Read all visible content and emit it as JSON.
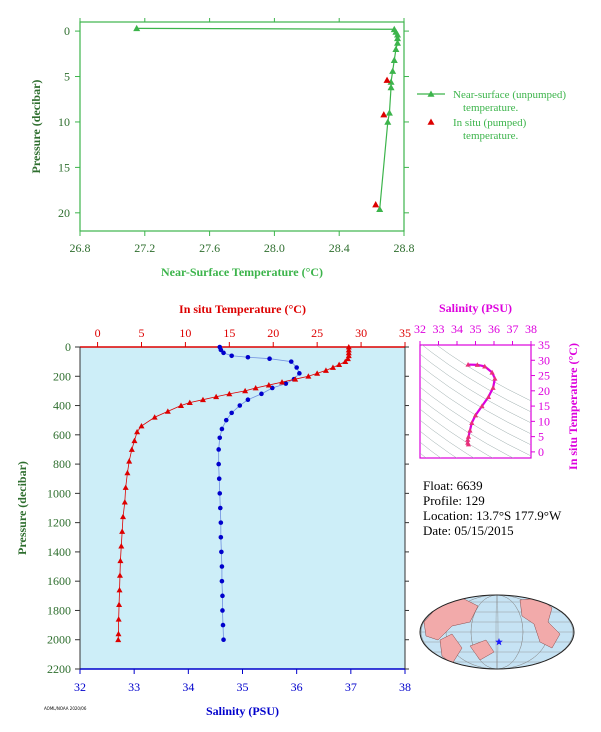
{
  "colors": {
    "green": "#3cb44b",
    "red": "#dd0000",
    "blue": "#0000cc",
    "magenta": "#dd00dd",
    "label_green": "#2e6e2e",
    "plot_bg": "#cdeef8",
    "land": "#f2aaaa",
    "ocean": "#c6e3f4"
  },
  "footer_code": "AOML/NOAA 2020/06",
  "float_info": {
    "float": "Float:  6639",
    "profile": "Profile:  129",
    "location": "Location:  13.7°S  177.9°W",
    "date": "Date:  05/15/2015"
  },
  "chart_data": [
    {
      "id": "near_surface",
      "type": "line",
      "xlabel": "Near-Surface Temperature (°C)",
      "ylabel": "Pressure (decibar)",
      "xlim": [
        26.8,
        28.8
      ],
      "ylim": [
        22,
        -1
      ],
      "xticks": [
        "26.8",
        "27.2",
        "27.6",
        "28.0",
        "28.4",
        "28.8"
      ],
      "yticks": [
        "0",
        "5",
        "10",
        "15",
        "20"
      ],
      "legend": {
        "position": "right",
        "entries": [
          "Near-surface (unpumped) temperature.",
          "In situ (pumped) temperature."
        ]
      },
      "series": [
        {
          "name": "Near-surface (unpumped) temperature.",
          "marker": "triangle",
          "points": [
            [
              27.15,
              -0.3
            ],
            [
              28.74,
              -0.2
            ],
            [
              28.75,
              0.1
            ],
            [
              28.76,
              0.4
            ],
            [
              28.76,
              0.8
            ],
            [
              28.76,
              1.3
            ],
            [
              28.75,
              2.0
            ],
            [
              28.74,
              3.2
            ],
            [
              28.73,
              4.4
            ],
            [
              28.72,
              5.6
            ],
            [
              28.72,
              6.2
            ],
            [
              28.71,
              9.0
            ],
            [
              28.7,
              10.0
            ],
            [
              28.65,
              19.6
            ]
          ]
        },
        {
          "name": "In situ (pumped) temperature.",
          "marker": "triangle",
          "points": [
            [
              28.72,
              5.5
            ],
            [
              28.7,
              9.3
            ],
            [
              28.65,
              19.2
            ]
          ]
        }
      ]
    },
    {
      "id": "profile",
      "type": "line",
      "x_top_label": "In situ Temperature (°C)",
      "x_bottom_label": "Salinity (PSU)",
      "ylabel": "Pressure (decibar)",
      "temp_lim": [
        -2,
        35
      ],
      "sal_lim": [
        32,
        38
      ],
      "ylim": [
        2200,
        0
      ],
      "temp_ticks": [
        "0",
        "5",
        "10",
        "15",
        "20",
        "25",
        "30",
        "35"
      ],
      "sal_ticks": [
        "32",
        "33",
        "34",
        "35",
        "36",
        "37",
        "38"
      ],
      "pressure_ticks": [
        "0",
        "200",
        "400",
        "600",
        "800",
        "1000",
        "1200",
        "1400",
        "1600",
        "1800",
        "2000",
        "2200"
      ],
      "temperature": [
        [
          28.6,
          0
        ],
        [
          28.6,
          20
        ],
        [
          28.6,
          40
        ],
        [
          28.6,
          60
        ],
        [
          28.5,
          80
        ],
        [
          28.2,
          100
        ],
        [
          27.5,
          120
        ],
        [
          26.8,
          140
        ],
        [
          26.0,
          160
        ],
        [
          25.0,
          180
        ],
        [
          24.0,
          200
        ],
        [
          22.5,
          220
        ],
        [
          21.0,
          240
        ],
        [
          19.5,
          260
        ],
        [
          18.0,
          280
        ],
        [
          16.8,
          300
        ],
        [
          15.0,
          320
        ],
        [
          13.5,
          340
        ],
        [
          12.0,
          360
        ],
        [
          10.5,
          380
        ],
        [
          9.5,
          400
        ],
        [
          8.0,
          440
        ],
        [
          6.5,
          480
        ],
        [
          5.0,
          540
        ],
        [
          4.5,
          580
        ],
        [
          4.2,
          640
        ],
        [
          3.9,
          700
        ],
        [
          3.6,
          780
        ],
        [
          3.4,
          860
        ],
        [
          3.2,
          960
        ],
        [
          3.1,
          1060
        ],
        [
          2.9,
          1160
        ],
        [
          2.8,
          1260
        ],
        [
          2.7,
          1360
        ],
        [
          2.6,
          1460
        ],
        [
          2.55,
          1560
        ],
        [
          2.5,
          1660
        ],
        [
          2.45,
          1760
        ],
        [
          2.4,
          1860
        ],
        [
          2.38,
          1960
        ],
        [
          2.35,
          2000
        ]
      ],
      "salinity": [
        [
          34.58,
          0
        ],
        [
          34.6,
          20
        ],
        [
          34.65,
          40
        ],
        [
          34.8,
          60
        ],
        [
          35.1,
          70
        ],
        [
          35.5,
          80
        ],
        [
          35.9,
          100
        ],
        [
          36.0,
          140
        ],
        [
          36.05,
          180
        ],
        [
          35.95,
          220
        ],
        [
          35.8,
          250
        ],
        [
          35.55,
          280
        ],
        [
          35.35,
          320
        ],
        [
          35.1,
          360
        ],
        [
          34.95,
          400
        ],
        [
          34.8,
          450
        ],
        [
          34.7,
          500
        ],
        [
          34.62,
          560
        ],
        [
          34.58,
          620
        ],
        [
          34.56,
          700
        ],
        [
          34.56,
          800
        ],
        [
          34.57,
          900
        ],
        [
          34.58,
          1000
        ],
        [
          34.59,
          1100
        ],
        [
          34.6,
          1200
        ],
        [
          34.6,
          1300
        ],
        [
          34.61,
          1400
        ],
        [
          34.62,
          1500
        ],
        [
          34.62,
          1600
        ],
        [
          34.63,
          1700
        ],
        [
          34.63,
          1800
        ],
        [
          34.64,
          1900
        ],
        [
          34.65,
          2000
        ]
      ]
    },
    {
      "id": "ts_diagram",
      "type": "scatter",
      "x_top_label": "Salinity (PSU)",
      "ylabel": "In situ Temperature (°C)",
      "xlim": [
        32,
        38
      ],
      "ylim": [
        -2,
        35
      ],
      "xticks": [
        "32",
        "33",
        "34",
        "35",
        "36",
        "37",
        "38"
      ],
      "yticks": [
        "0",
        "5",
        "10",
        "15",
        "20",
        "25",
        "30",
        "35"
      ],
      "points": [
        [
          34.6,
          28.6
        ],
        [
          35.1,
          28.5
        ],
        [
          35.5,
          28.0
        ],
        [
          35.9,
          26.0
        ],
        [
          36.05,
          24.0
        ],
        [
          35.95,
          21.0
        ],
        [
          35.7,
          18.0
        ],
        [
          35.35,
          15.0
        ],
        [
          35.0,
          12.0
        ],
        [
          34.8,
          9.5
        ],
        [
          34.7,
          7.0
        ],
        [
          34.62,
          5.0
        ],
        [
          34.58,
          4.0
        ],
        [
          34.58,
          3.0
        ],
        [
          34.62,
          2.5
        ]
      ]
    }
  ]
}
